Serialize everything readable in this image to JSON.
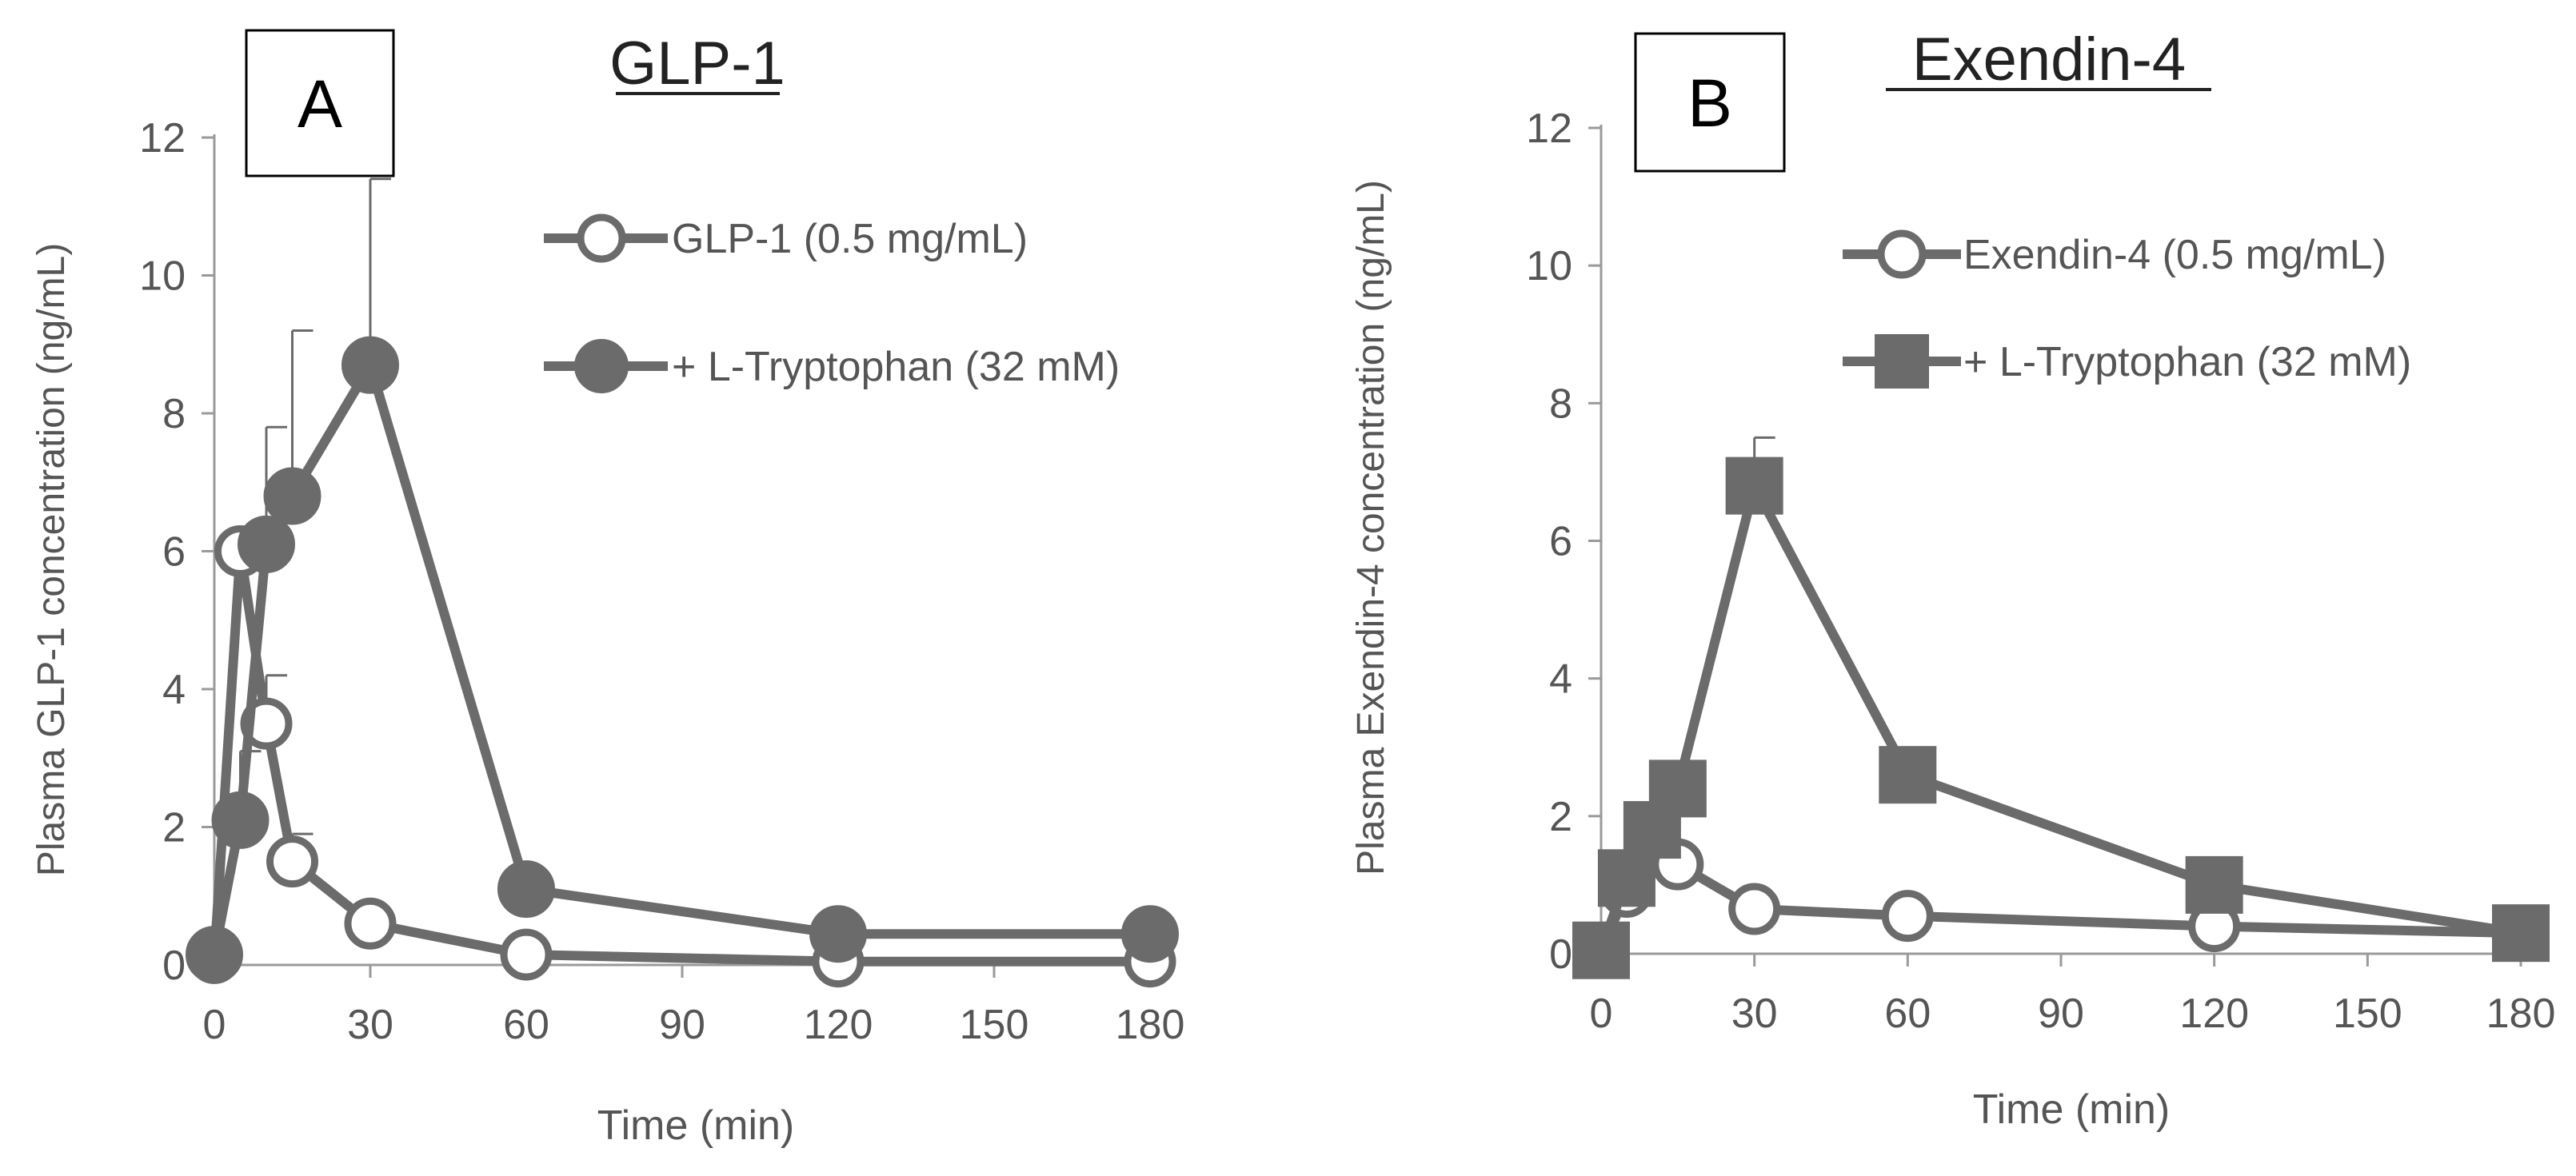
{
  "colors": {
    "series": "#6b6b6b",
    "axis": "#9a9a9a",
    "text": "#555555",
    "marker_fill": "#ffffff"
  },
  "chart_data": [
    {
      "panel_label": "A",
      "title": "GLP-1",
      "type": "line",
      "xlabel": "Time (min)",
      "ylabel": "Plasma GLP-1 concentration  (ng/mL)",
      "xlim": [
        0,
        180
      ],
      "ylim": [
        0,
        12
      ],
      "xticks": [
        "0",
        "30",
        "60",
        "90",
        "120",
        "150",
        "180"
      ],
      "yticks": [
        "0",
        "2",
        "4",
        "6",
        "8",
        "10",
        "12"
      ],
      "legend_position": "top-right",
      "series": [
        {
          "name": "GLP-1 (0.5 mg/mL)",
          "marker": "circle-open",
          "x": [
            0,
            5,
            10,
            15,
            30,
            60,
            120,
            180
          ],
          "y": [
            0.1,
            6.0,
            3.5,
            1.5,
            0.6,
            0.15,
            0.05,
            0.05
          ],
          "error": [
            0,
            0.3,
            0.7,
            0.4,
            0,
            0,
            0,
            0
          ]
        },
        {
          "name": "+ L-Tryptophan  (32 mM)",
          "marker": "circle-filled",
          "x": [
            0,
            5,
            10,
            15,
            30,
            60,
            120,
            180
          ],
          "y": [
            0.15,
            2.1,
            6.1,
            6.8,
            8.7,
            1.1,
            0.45,
            0.45
          ],
          "error": [
            0,
            1.0,
            1.7,
            2.4,
            2.7,
            0,
            0,
            0
          ]
        }
      ]
    },
    {
      "panel_label": "B",
      "title": "Exendin-4",
      "type": "line",
      "xlabel": "Time (min)",
      "ylabel": "Plasma Exendin-4 concentration (ng/mL)",
      "xlim": [
        0,
        180
      ],
      "ylim": [
        0,
        12
      ],
      "xticks": [
        "0",
        "30",
        "60",
        "90",
        "120",
        "150",
        "180"
      ],
      "yticks": [
        "0",
        "2",
        "4",
        "6",
        "8",
        "10",
        "12"
      ],
      "legend_position": "top-right",
      "series": [
        {
          "name": "Exendin-4  (0.5 mg/mL)",
          "marker": "circle-open",
          "x": [
            0,
            5,
            10,
            15,
            30,
            60,
            120,
            180
          ],
          "y": [
            0.05,
            0.9,
            1.5,
            1.3,
            0.65,
            0.55,
            0.4,
            0.3
          ],
          "error": [
            0,
            0,
            0,
            0,
            0,
            0,
            0,
            0
          ]
        },
        {
          "name": "+ L-Tryptophan  (32 mM)",
          "marker": "square-filled",
          "x": [
            0,
            5,
            10,
            15,
            30,
            60,
            120,
            180
          ],
          "y": [
            0.05,
            1.1,
            1.8,
            2.4,
            6.8,
            2.6,
            1.0,
            0.3
          ],
          "error": [
            0,
            0,
            0,
            0,
            0.7,
            0,
            0,
            0
          ]
        }
      ]
    }
  ]
}
